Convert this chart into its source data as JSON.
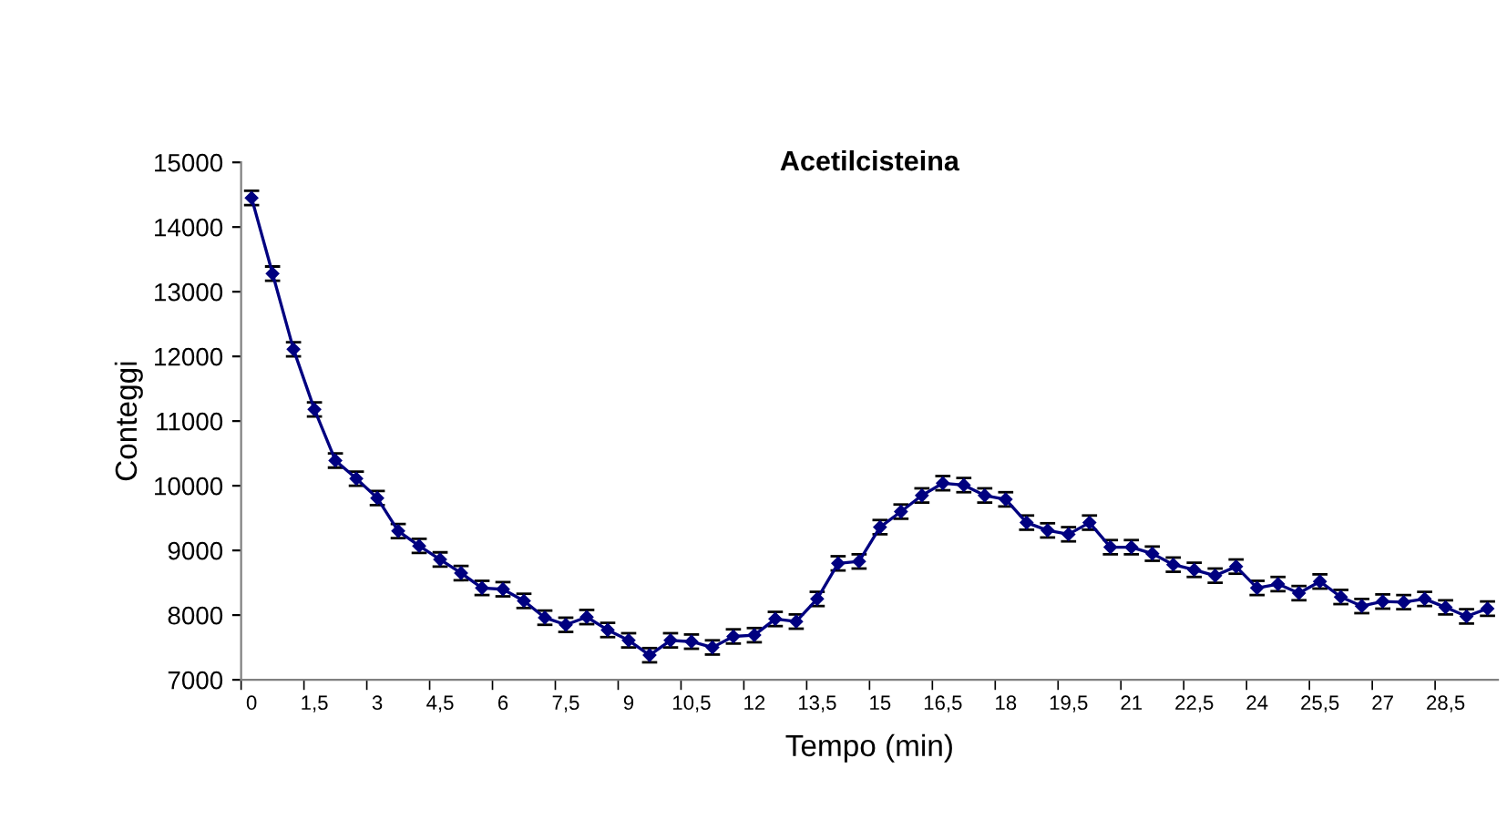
{
  "chart_data": {
    "type": "line",
    "title": "Acetilcisteina",
    "xlabel": "Tempo (min)",
    "ylabel": "Conteggi",
    "categories": [
      "0",
      null,
      null,
      "1,5",
      null,
      null,
      "3",
      null,
      null,
      "4,5",
      null,
      null,
      "6",
      null,
      null,
      "7,5",
      null,
      null,
      "9",
      null,
      null,
      "10,5",
      null,
      null,
      "12",
      null,
      null,
      "13,5",
      null,
      null,
      "15",
      null,
      null,
      "16,5",
      null,
      null,
      "18",
      null,
      null,
      "19,5",
      null,
      null,
      "21",
      null,
      null,
      "22,5",
      null,
      null,
      "24",
      null,
      null,
      "25,5",
      null,
      null,
      "27",
      null,
      null,
      "28,5",
      null,
      null
    ],
    "series": [
      {
        "color": "#000080",
        "values": [
          14450,
          13280,
          12110,
          11180,
          10390,
          10110,
          9810,
          9300,
          9070,
          8860,
          8650,
          8420,
          8400,
          8220,
          7960,
          7850,
          7970,
          7770,
          7610,
          7380,
          7610,
          7590,
          7500,
          7670,
          7690,
          7940,
          7900,
          8250,
          8800,
          8830,
          9360,
          9600,
          9850,
          10040,
          10010,
          9850,
          9790,
          9430,
          9310,
          9250,
          9430,
          9050,
          9050,
          8950,
          8780,
          8700,
          8610,
          8750,
          8420,
          8480,
          8340,
          8520,
          8280,
          8140,
          8210,
          8200,
          8250,
          8120,
          7980,
          8100
        ],
        "errors": [
          110,
          110,
          110,
          110,
          110,
          110,
          110,
          110,
          110,
          110,
          110,
          110,
          110,
          110,
          110,
          110,
          110,
          110,
          110,
          110,
          110,
          110,
          110,
          110,
          110,
          110,
          110,
          110,
          110,
          110,
          110,
          110,
          110,
          110,
          110,
          110,
          110,
          110,
          110,
          110,
          110,
          110,
          110,
          110,
          110,
          110,
          110,
          110,
          110,
          110,
          110,
          110,
          110,
          110,
          110,
          110,
          110,
          110,
          110,
          110
        ]
      }
    ],
    "ylim": [
      7000,
      15000
    ],
    "yticks": [
      7000,
      8000,
      9000,
      10000,
      11000,
      12000,
      13000,
      14000,
      15000
    ],
    "marker": "diamond",
    "line_style": "solid",
    "grid": false,
    "legend": false
  }
}
